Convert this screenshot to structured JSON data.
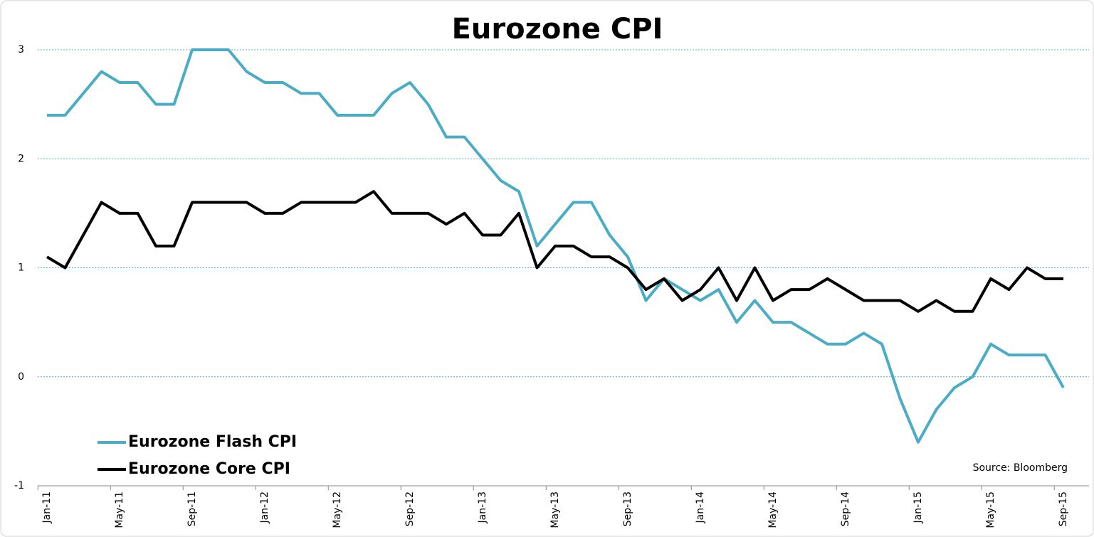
{
  "chart_data": {
    "type": "line",
    "title": "Eurozone CPI",
    "categories": [
      "Jan-11",
      null,
      null,
      null,
      "May-11",
      null,
      null,
      null,
      "Sep-11",
      null,
      null,
      null,
      "Jan-12",
      null,
      null,
      null,
      "May-12",
      null,
      null,
      null,
      "Sep-12",
      null,
      null,
      null,
      "Jan-13",
      null,
      null,
      null,
      "May-13",
      null,
      null,
      null,
      "Sep-13",
      null,
      null,
      null,
      "Jan-14",
      null,
      null,
      null,
      "May-14",
      null,
      null,
      null,
      "Sep-14",
      null,
      null,
      null,
      "Jan-15",
      null,
      null,
      null,
      "May-15",
      null,
      null,
      null,
      "Sep-15"
    ],
    "series": [
      {
        "name": "Eurozone Flash CPI",
        "color": "#4bacc6",
        "values": [
          2.4,
          2.4,
          2.6,
          2.8,
          2.7,
          2.7,
          2.5,
          2.5,
          3.0,
          3.0,
          3.0,
          2.8,
          2.7,
          2.7,
          2.6,
          2.6,
          2.4,
          2.4,
          2.4,
          2.6,
          2.7,
          2.5,
          2.2,
          2.2,
          2.0,
          1.8,
          1.7,
          1.2,
          1.4,
          1.6,
          1.6,
          1.3,
          1.1,
          0.7,
          0.9,
          0.8,
          0.7,
          0.8,
          0.5,
          0.7,
          0.5,
          0.5,
          0.4,
          0.3,
          0.3,
          0.4,
          0.3,
          -0.2,
          -0.6,
          -0.3,
          -0.1,
          0.0,
          0.3,
          0.2,
          0.2,
          0.2,
          -0.1
        ]
      },
      {
        "name": "Eurozone Core CPI",
        "color": "#000000",
        "values": [
          1.1,
          1.0,
          1.3,
          1.6,
          1.5,
          1.5,
          1.2,
          1.2,
          1.6,
          1.6,
          1.6,
          1.6,
          1.5,
          1.5,
          1.6,
          1.6,
          1.6,
          1.6,
          1.7,
          1.5,
          1.5,
          1.5,
          1.4,
          1.5,
          1.3,
          1.3,
          1.5,
          1.0,
          1.2,
          1.2,
          1.1,
          1.1,
          1.0,
          0.8,
          0.9,
          0.7,
          0.8,
          1.0,
          0.7,
          1.0,
          0.7,
          0.8,
          0.8,
          0.9,
          0.8,
          0.7,
          0.7,
          0.7,
          0.6,
          0.7,
          0.6,
          0.6,
          0.9,
          0.8,
          1.0,
          0.9,
          0.9
        ]
      }
    ],
    "ylim": [
      -1,
      3
    ],
    "yticks": [
      -1,
      0,
      1,
      2,
      3
    ],
    "grid": true,
    "legend": "lower left",
    "source": "Source: Bloomberg"
  }
}
